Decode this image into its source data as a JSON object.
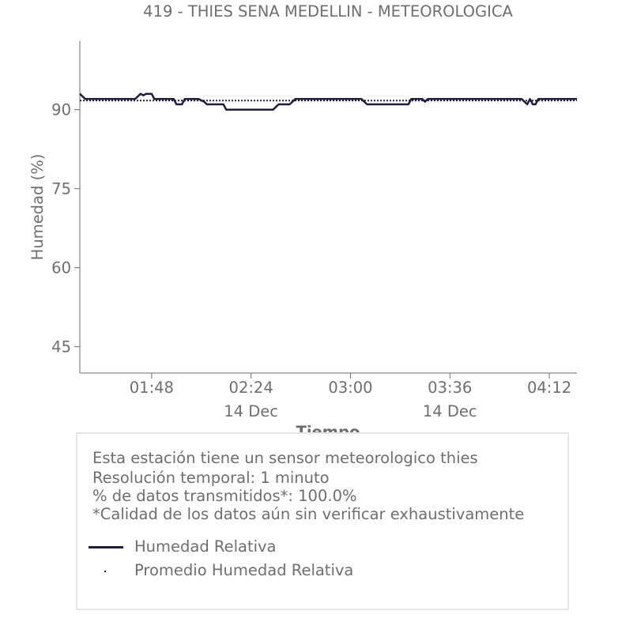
{
  "chart_data": {
    "type": "line",
    "title": "419 - THIES SENA MEDELLIN - METEOROLOGICA",
    "xlabel": "Tiempo",
    "ylabel": "Humedad (%)",
    "ylim": [
      40,
      103
    ],
    "xlim": [
      "01:22",
      "04:22"
    ],
    "yticks": [
      45,
      60,
      75,
      90
    ],
    "xticks": [
      {
        "time": "01:48",
        "label": "01:48",
        "sublabel": ""
      },
      {
        "time": "02:24",
        "label": "02:24",
        "sublabel": "14 Dec"
      },
      {
        "time": "03:00",
        "label": "03:00",
        "sublabel": ""
      },
      {
        "time": "03:36",
        "label": "03:36",
        "sublabel": "14 Dec"
      },
      {
        "time": "04:12",
        "label": "04:12",
        "sublabel": ""
      }
    ],
    "grid": false,
    "series": [
      {
        "name": "Humedad Relativa",
        "style": "solid",
        "color": "#1f1f3d",
        "points": [
          [
            "01:22",
            93
          ],
          [
            "01:24",
            92
          ],
          [
            "01:42",
            92
          ],
          [
            "01:43",
            92.5
          ],
          [
            "01:44",
            93
          ],
          [
            "01:45",
            92.7
          ],
          [
            "01:46",
            93
          ],
          [
            "01:48",
            93
          ],
          [
            "01:49",
            92
          ],
          [
            "01:56",
            92
          ],
          [
            "01:57",
            91
          ],
          [
            "01:59",
            91
          ],
          [
            "02:00",
            92
          ],
          [
            "02:05",
            92
          ],
          [
            "02:07",
            91.5
          ],
          [
            "02:08",
            91
          ],
          [
            "02:14",
            91
          ],
          [
            "02:15",
            90
          ],
          [
            "02:32",
            90
          ],
          [
            "02:33",
            90.5
          ],
          [
            "02:34",
            91
          ],
          [
            "02:38",
            91
          ],
          [
            "02:40",
            92
          ],
          [
            "03:04",
            92
          ],
          [
            "03:06",
            91
          ],
          [
            "03:21",
            91
          ],
          [
            "03:22",
            92
          ],
          [
            "03:26",
            92
          ],
          [
            "03:27",
            91.5
          ],
          [
            "03:28",
            92
          ],
          [
            "04:02",
            92
          ],
          [
            "04:03",
            91.5
          ],
          [
            "04:04",
            91
          ],
          [
            "04:05",
            92
          ],
          [
            "04:06",
            91
          ],
          [
            "04:07",
            91
          ],
          [
            "04:08",
            92
          ],
          [
            "04:22",
            92
          ]
        ]
      },
      {
        "name": "Promedio Humedad Relativa",
        "style": "dotted",
        "color": "#1f1f3d",
        "points": [
          [
            "01:22",
            91.7
          ],
          [
            "04:22",
            91.7
          ]
        ]
      }
    ]
  },
  "legend": {
    "info_lines": [
      "Esta estación tiene un sensor meteorologico thies",
      "Resolución temporal: 1 minuto",
      "% de datos transmitidos*: 100.0%",
      "*Calidad de los datos aún sin verificar exhaustivamente"
    ],
    "items": [
      {
        "label": "Humedad Relativa",
        "style": "solid"
      },
      {
        "label": "Promedio Humedad Relativa",
        "style": "dotted"
      }
    ]
  }
}
